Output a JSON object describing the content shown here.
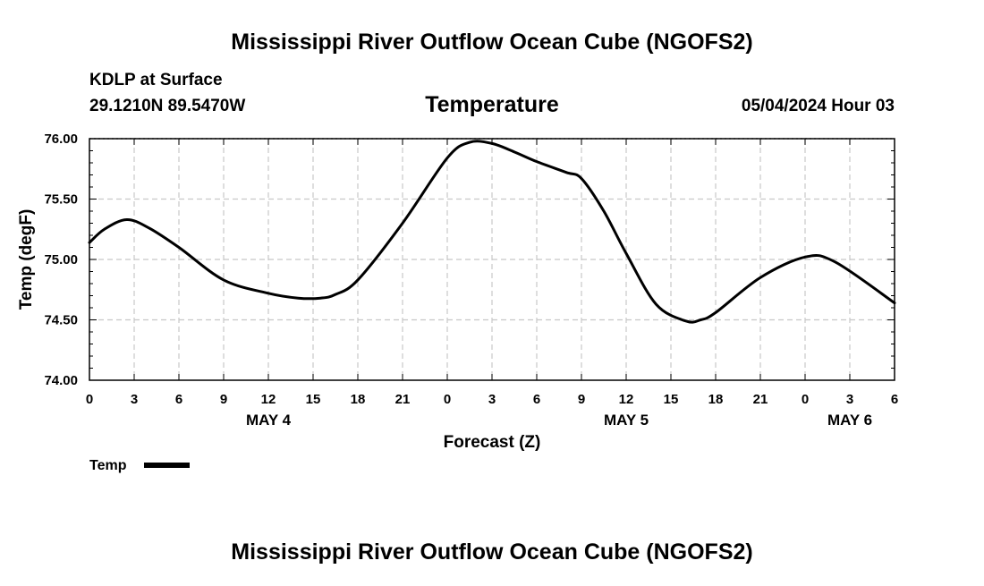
{
  "page": {
    "title_top": "Mississippi River Outflow Ocean Cube (NGOFS2)",
    "title_bottom": "Mississippi River Outflow Ocean Cube (NGOFS2)",
    "station": "KDLP at Surface",
    "coords": "29.1210N  89.5470W",
    "datetime": "05/04/2024 Hour 03"
  },
  "legend": {
    "label": "Temp"
  },
  "colors": {
    "line": "#000000",
    "grid": "#c8c8c8",
    "background": "#ffffff"
  },
  "chart_data": {
    "type": "line",
    "title": "Temperature",
    "xlabel": "Forecast (Z)",
    "ylabel": "Temp (degF)",
    "xlim": [
      0,
      54
    ],
    "ylim": [
      74.0,
      76.0
    ],
    "grid": true,
    "x_ticks": [
      0,
      3,
      6,
      9,
      12,
      15,
      18,
      21,
      24,
      27,
      30,
      33,
      36,
      39,
      42,
      45,
      48,
      51,
      54
    ],
    "x_tick_labels": [
      "0",
      "3",
      "6",
      "9",
      "12",
      "15",
      "18",
      "21",
      "0",
      "3",
      "6",
      "9",
      "12",
      "15",
      "18",
      "21",
      "0",
      "3",
      "6"
    ],
    "y_ticks": [
      74.0,
      74.5,
      75.0,
      75.5,
      76.0
    ],
    "y_tick_labels": [
      "74.00",
      "74.50",
      "75.00",
      "75.50",
      "76.00"
    ],
    "day_labels": [
      {
        "x": 12,
        "label": "MAY 4"
      },
      {
        "x": 36,
        "label": "MAY 5"
      },
      {
        "x": 51,
        "label": "MAY 6"
      }
    ],
    "series": [
      {
        "name": "Temp",
        "x": [
          0,
          1,
          2.5,
          4,
          6,
          9,
          12,
          14,
          15.5,
          16.5,
          18,
          21,
          24,
          25.5,
          27,
          28.5,
          30,
          32,
          33,
          34.5,
          36,
          38,
          40,
          41,
          42,
          45,
          48,
          50,
          54
        ],
        "y": [
          75.14,
          75.25,
          75.33,
          75.26,
          75.1,
          74.83,
          74.72,
          74.68,
          74.68,
          74.71,
          74.83,
          75.3,
          75.84,
          75.97,
          75.96,
          75.89,
          75.81,
          75.72,
          75.67,
          75.4,
          75.05,
          74.63,
          74.49,
          74.5,
          74.56,
          74.85,
          75.02,
          74.98,
          74.64
        ]
      }
    ]
  }
}
